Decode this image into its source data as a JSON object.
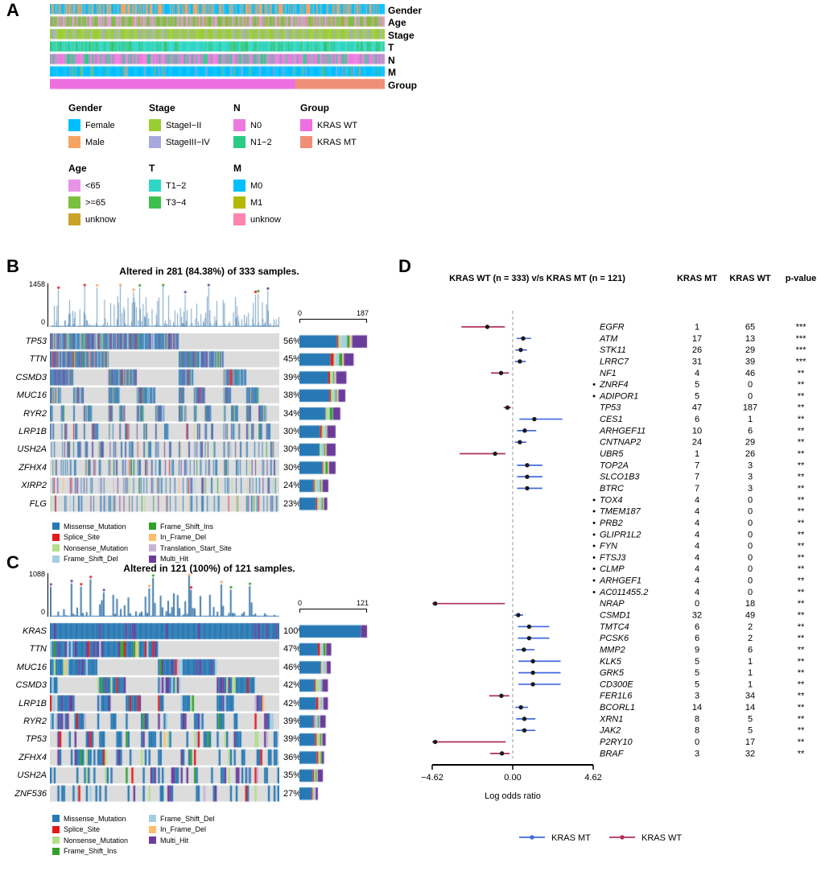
{
  "mutation_colors": {
    "Missense_Mutation": "#2779B5",
    "Splice_Site": "#E31A1C",
    "Nonsense_Mutation": "#B2DF8A",
    "Frame_Shift_Del": "#A6CEE3",
    "Frame_Shift_Ins": "#33A02C",
    "In_Frame_Del": "#FDBF6F",
    "Translation_Start_Site": "#CAB2D6",
    "Multi_Hit": "#6A3D9A"
  },
  "colors": {
    "onco_bg": "#DCDCDC",
    "tmb_bar": "#3A76A9",
    "tmb_dots": [
      "#F4A460",
      "#33A02C",
      "#E31A1C",
      "#6A3D9A"
    ]
  },
  "chart_data": [
    {
      "id": "A",
      "type": "heatmap",
      "panel_label": "A",
      "tracks": [
        {
          "name": "Gender",
          "layout": "random",
          "categories": [
            {
              "label": "Female",
              "color": "#00BFFF",
              "p": 0.55
            },
            {
              "label": "Male",
              "color": "#F4A460",
              "p": 0.45
            }
          ]
        },
        {
          "name": "Age",
          "layout": "random",
          "categories": [
            {
              "label": "<65",
              "color": "#E793E7",
              "p": 0.37
            },
            {
              "label": ">=65",
              "color": "#7CBF3F",
              "p": 0.6
            },
            {
              "label": "unknow",
              "color": "#C9A227",
              "p": 0.03
            }
          ]
        },
        {
          "name": "Stage",
          "layout": "random",
          "categories": [
            {
              "label": "StageI−II",
              "color": "#9ACD32",
              "p": 0.77
            },
            {
              "label": "StageIII−IV",
              "color": "#A8A8DE",
              "p": 0.23
            }
          ]
        },
        {
          "name": "T",
          "layout": "random",
          "categories": [
            {
              "label": "T1−2",
              "color": "#2FD6C6",
              "p": 0.8
            },
            {
              "label": "T3−4",
              "color": "#3FBF4D",
              "p": 0.2
            }
          ]
        },
        {
          "name": "N",
          "layout": "random",
          "categories": [
            {
              "label": "N0",
              "color": "#EE7AE0",
              "p": 0.64
            },
            {
              "label": "N1−2",
              "color": "#2BCB87",
              "p": 0.36
            }
          ]
        },
        {
          "name": "M",
          "layout": "random",
          "categories": [
            {
              "label": "M0",
              "color": "#00BFFF",
              "p": 0.92
            },
            {
              "label": "M1",
              "color": "#B5B800",
              "p": 0.04
            },
            {
              "label": "unknow",
              "color": "#FF85AC",
              "p": 0.04
            }
          ]
        },
        {
          "name": "Group",
          "layout": "block",
          "categories": [
            {
              "label": "KRAS WT",
              "color": "#EE6FE1",
              "p": 0.733
            },
            {
              "label": "KRAS MT",
              "color": "#F08F77",
              "p": 0.267
            }
          ]
        }
      ],
      "legends": [
        {
          "title": "Gender",
          "items": [
            {
              "label": "Female",
              "color": "#00BFFF"
            },
            {
              "label": "Male",
              "color": "#F4A460"
            }
          ]
        },
        {
          "title": "Stage",
          "items": [
            {
              "label": "StageI−II",
              "color": "#9ACD32"
            },
            {
              "label": "StageIII−IV",
              "color": "#A8A8DE"
            }
          ]
        },
        {
          "title": "N",
          "items": [
            {
              "label": "N0",
              "color": "#EE7AE0"
            },
            {
              "label": "N1−2",
              "color": "#2BCB87"
            }
          ]
        },
        {
          "title": "Group",
          "items": [
            {
              "label": "KRAS WT",
              "color": "#EE6FE1"
            },
            {
              "label": "KRAS MT",
              "color": "#F08F77"
            }
          ]
        },
        {
          "title": "Age",
          "items": [
            {
              "label": "<65",
              "color": "#E793E7"
            },
            {
              "label": ">=65",
              "color": "#7CBF3F"
            },
            {
              "label": "unknow",
              "color": "#C9A227"
            }
          ]
        },
        {
          "title": "T",
          "items": [
            {
              "label": "T1−2",
              "color": "#2FD6C6"
            },
            {
              "label": "T3−4",
              "color": "#3FBF4D"
            }
          ]
        },
        {
          "title": "M",
          "items": [
            {
              "label": "M0",
              "color": "#00BFFF"
            },
            {
              "label": "M1",
              "color": "#B5B800"
            },
            {
              "label": "unknow",
              "color": "#FF85AC"
            }
          ]
        }
      ]
    },
    {
      "id": "B",
      "type": "bar",
      "subtype": "oncoprint",
      "panel_label": "B",
      "title": "Altered in 281 (84.38%) of 333 samples.",
      "n_samples": 333,
      "n_altered": 281,
      "tmb_axis": {
        "max_label": "1458",
        "min_label": "0"
      },
      "bar_axis": {
        "max": 187,
        "max_label": "187",
        "min_label": "0"
      },
      "genes": [
        {
          "gene": "TP53",
          "pct": 56,
          "pct_label": "56%",
          "count": 187
        },
        {
          "gene": "TTN",
          "pct": 45,
          "pct_label": "45%",
          "count": 150
        },
        {
          "gene": "CSMD3",
          "pct": 39,
          "pct_label": "39%",
          "count": 130
        },
        {
          "gene": "MUC16",
          "pct": 38,
          "pct_label": "38%",
          "count": 127
        },
        {
          "gene": "RYR2",
          "pct": 34,
          "pct_label": "34%",
          "count": 113
        },
        {
          "gene": "LRP1B",
          "pct": 30,
          "pct_label": "30%",
          "count": 100
        },
        {
          "gene": "USH2A",
          "pct": 30,
          "pct_label": "30%",
          "count": 100
        },
        {
          "gene": "ZFHX4",
          "pct": 30,
          "pct_label": "30%",
          "count": 100
        },
        {
          "gene": "XIRP2",
          "pct": 24,
          "pct_label": "24%",
          "count": 80
        },
        {
          "gene": "FLG",
          "pct": 23,
          "pct_label": "23%",
          "count": 77
        }
      ],
      "legend_columns": [
        [
          "Missense_Mutation",
          "Splice_Site",
          "Nonsense_Mutation",
          "Frame_Shift_Del"
        ],
        [
          "Frame_Shift_Ins",
          "In_Frame_Del",
          "Translation_Start_Site",
          "Multi_Hit"
        ]
      ]
    },
    {
      "id": "C",
      "type": "bar",
      "subtype": "oncoprint",
      "panel_label": "C",
      "title": "Altered in 121 (100%) of 121 samples.",
      "n_samples": 121,
      "n_altered": 121,
      "tmb_axis": {
        "max_label": "1088",
        "min_label": "0"
      },
      "bar_axis": {
        "max": 121,
        "max_label": "121",
        "min_label": "0"
      },
      "genes": [
        {
          "gene": "KRAS",
          "pct": 100,
          "pct_label": "100%",
          "count": 121
        },
        {
          "gene": "TTN",
          "pct": 47,
          "pct_label": "47%",
          "count": 57
        },
        {
          "gene": "MUC16",
          "pct": 46,
          "pct_label": "46%",
          "count": 56
        },
        {
          "gene": "CSMD3",
          "pct": 42,
          "pct_label": "42%",
          "count": 51
        },
        {
          "gene": "LRP1B",
          "pct": 42,
          "pct_label": "42%",
          "count": 51
        },
        {
          "gene": "RYR2",
          "pct": 39,
          "pct_label": "39%",
          "count": 47
        },
        {
          "gene": "TP53",
          "pct": 39,
          "pct_label": "39%",
          "count": 47
        },
        {
          "gene": "ZFHX4",
          "pct": 36,
          "pct_label": "36%",
          "count": 44
        },
        {
          "gene": "USH2A",
          "pct": 35,
          "pct_label": "35%",
          "count": 42
        },
        {
          "gene": "ZNF536",
          "pct": 27,
          "pct_label": "27%",
          "count": 33
        }
      ],
      "legend_columns": [
        [
          "Missense_Mutation",
          "Splice_Site",
          "Nonsense_Mutation",
          "Frame_Shift_Ins"
        ],
        [
          "Frame_Shift_Del",
          "In_Frame_Del",
          "Multi_Hit"
        ]
      ]
    },
    {
      "id": "D",
      "type": "scatter",
      "subtype": "forest",
      "panel_label": "D",
      "title": "KRAS WT (n = 333) v/s KRAS MT (n = 121)",
      "columns": [
        "KRAS MT",
        "KRAS WT",
        "p-value"
      ],
      "axis": {
        "min": -4.62,
        "max": 4.62,
        "tick_values": [
          -4.62,
          0,
          4.62
        ],
        "ticks": [
          "−4.62",
          "0.00",
          "4.62"
        ],
        "label": "Log odds ratio"
      },
      "colors": {
        "mt": "#4169E1",
        "wt": "#B03060"
      },
      "legend": [
        {
          "label": "KRAS MT",
          "color": "#4169E1"
        },
        {
          "label": "KRAS WT",
          "color": "#B03060"
        }
      ],
      "rows": [
        {
          "gene": "EGFR",
          "mt": 1,
          "wt": 65,
          "p": "***",
          "bullet": false,
          "group": "wt",
          "lor": -1.46,
          "ci": [
            -2.95,
            -0.45
          ]
        },
        {
          "gene": "ATM",
          "mt": 17,
          "wt": 13,
          "p": "***",
          "bullet": false,
          "group": "mt",
          "lor": 0.6,
          "ci": [
            0.22,
            1.05
          ]
        },
        {
          "gene": "STK11",
          "mt": 26,
          "wt": 29,
          "p": "***",
          "bullet": false,
          "group": "mt",
          "lor": 0.46,
          "ci": [
            0.15,
            0.82
          ]
        },
        {
          "gene": "LRRC7",
          "mt": 31,
          "wt": 39,
          "p": "***",
          "bullet": false,
          "group": "mt",
          "lor": 0.41,
          "ci": [
            0.12,
            0.75
          ]
        },
        {
          "gene": "NF1",
          "mt": 4,
          "wt": 46,
          "p": "**",
          "bullet": false,
          "group": "wt",
          "lor": -0.67,
          "ci": [
            -1.25,
            -0.22
          ]
        },
        {
          "gene": "ZNRF4",
          "mt": 5,
          "wt": 0,
          "p": "**",
          "bullet": true,
          "group": null,
          "lor": null,
          "ci": null
        },
        {
          "gene": "ADIPOR1",
          "mt": 5,
          "wt": 0,
          "p": "**",
          "bullet": true,
          "group": null,
          "lor": null,
          "ci": null
        },
        {
          "gene": "TP53",
          "mt": 47,
          "wt": 187,
          "p": "**",
          "bullet": false,
          "group": "wt",
          "lor": -0.3,
          "ci": [
            -0.52,
            -0.1
          ]
        },
        {
          "gene": "CES1",
          "mt": 6,
          "wt": 1,
          "p": "**",
          "bullet": false,
          "group": "mt",
          "lor": 1.24,
          "ci": [
            0.38,
            2.85
          ]
        },
        {
          "gene": "ARHGEF11",
          "mt": 10,
          "wt": 6,
          "p": "**",
          "bullet": false,
          "group": "mt",
          "lor": 0.69,
          "ci": [
            0.25,
            1.35
          ]
        },
        {
          "gene": "CNTNAP2",
          "mt": 24,
          "wt": 29,
          "p": "**",
          "bullet": false,
          "group": "mt",
          "lor": 0.41,
          "ci": [
            0.12,
            0.78
          ]
        },
        {
          "gene": "UBR5",
          "mt": 1,
          "wt": 26,
          "p": "**",
          "bullet": false,
          "group": "wt",
          "lor": -1.01,
          "ci": [
            -3.05,
            -0.42
          ]
        },
        {
          "gene": "TOP2A",
          "mt": 7,
          "wt": 3,
          "p": "**",
          "bullet": false,
          "group": "mt",
          "lor": 0.83,
          "ci": [
            0.25,
            1.7
          ]
        },
        {
          "gene": "SLCO1B3",
          "mt": 7,
          "wt": 3,
          "p": "**",
          "bullet": false,
          "group": "mt",
          "lor": 0.83,
          "ci": [
            0.25,
            1.7
          ]
        },
        {
          "gene": "BTRC",
          "mt": 7,
          "wt": 3,
          "p": "**",
          "bullet": false,
          "group": "mt",
          "lor": 0.83,
          "ci": [
            0.25,
            1.7
          ]
        },
        {
          "gene": "TOX4",
          "mt": 4,
          "wt": 0,
          "p": "**",
          "bullet": true,
          "group": null,
          "lor": null,
          "ci": null
        },
        {
          "gene": "TMEM187",
          "mt": 4,
          "wt": 0,
          "p": "**",
          "bullet": true,
          "group": null,
          "lor": null,
          "ci": null
        },
        {
          "gene": "PRB2",
          "mt": 4,
          "wt": 0,
          "p": "**",
          "bullet": true,
          "group": null,
          "lor": null,
          "ci": null
        },
        {
          "gene": "GLIPR1L2",
          "mt": 4,
          "wt": 0,
          "p": "**",
          "bullet": true,
          "group": null,
          "lor": null,
          "ci": null
        },
        {
          "gene": "FYN",
          "mt": 4,
          "wt": 0,
          "p": "**",
          "bullet": true,
          "group": null,
          "lor": null,
          "ci": null
        },
        {
          "gene": "FTSJ3",
          "mt": 4,
          "wt": 0,
          "p": "**",
          "bullet": true,
          "group": null,
          "lor": null,
          "ci": null
        },
        {
          "gene": "CLMP",
          "mt": 4,
          "wt": 0,
          "p": "**",
          "bullet": true,
          "group": null,
          "lor": null,
          "ci": null
        },
        {
          "gene": "ARHGEF1",
          "mt": 4,
          "wt": 0,
          "p": "**",
          "bullet": true,
          "group": null,
          "lor": null,
          "ci": null
        },
        {
          "gene": "AC011455.2",
          "mt": 4,
          "wt": 0,
          "p": "**",
          "bullet": true,
          "group": null,
          "lor": null,
          "ci": null
        },
        {
          "gene": "NRAP",
          "mt": 0,
          "wt": 18,
          "p": "**",
          "bullet": false,
          "group": "wt",
          "lor": -4.45,
          "ci": [
            -4.62,
            -0.45
          ]
        },
        {
          "gene": "CSMD1",
          "mt": 32,
          "wt": 49,
          "p": "**",
          "bullet": false,
          "group": "mt",
          "lor": 0.32,
          "ci": [
            0.08,
            0.6
          ]
        },
        {
          "gene": "TMTC4",
          "mt": 6,
          "wt": 2,
          "p": "**",
          "bullet": false,
          "group": "mt",
          "lor": 0.94,
          "ci": [
            0.3,
            2.1
          ]
        },
        {
          "gene": "PCSK6",
          "mt": 6,
          "wt": 2,
          "p": "**",
          "bullet": false,
          "group": "mt",
          "lor": 0.94,
          "ci": [
            0.3,
            2.1
          ]
        },
        {
          "gene": "MMP2",
          "mt": 9,
          "wt": 6,
          "p": "**",
          "bullet": false,
          "group": "mt",
          "lor": 0.64,
          "ci": [
            0.2,
            1.25
          ]
        },
        {
          "gene": "KLK5",
          "mt": 5,
          "wt": 1,
          "p": "**",
          "bullet": false,
          "group": "mt",
          "lor": 1.16,
          "ci": [
            0.33,
            2.75
          ]
        },
        {
          "gene": "GRK5",
          "mt": 5,
          "wt": 1,
          "p": "**",
          "bullet": false,
          "group": "mt",
          "lor": 1.16,
          "ci": [
            0.33,
            2.75
          ]
        },
        {
          "gene": "CD300E",
          "mt": 5,
          "wt": 1,
          "p": "**",
          "bullet": false,
          "group": "mt",
          "lor": 1.16,
          "ci": [
            0.33,
            2.75
          ]
        },
        {
          "gene": "FER1L6",
          "mt": 3,
          "wt": 34,
          "p": "**",
          "bullet": false,
          "group": "wt",
          "lor": -0.65,
          "ci": [
            -1.35,
            -0.2
          ]
        },
        {
          "gene": "BCORL1",
          "mt": 14,
          "wt": 14,
          "p": "**",
          "bullet": false,
          "group": "mt",
          "lor": 0.47,
          "ci": [
            0.15,
            0.88
          ]
        },
        {
          "gene": "XRN1",
          "mt": 8,
          "wt": 5,
          "p": "**",
          "bullet": false,
          "group": "mt",
          "lor": 0.67,
          "ci": [
            0.2,
            1.3
          ]
        },
        {
          "gene": "JAK2",
          "mt": 8,
          "wt": 5,
          "p": "**",
          "bullet": false,
          "group": "mt",
          "lor": 0.67,
          "ci": [
            0.2,
            1.3
          ]
        },
        {
          "gene": "P2RY10",
          "mt": 0,
          "wt": 17,
          "p": "**",
          "bullet": false,
          "group": "wt",
          "lor": -4.45,
          "ci": [
            -4.62,
            -0.4
          ]
        },
        {
          "gene": "BRAF",
          "mt": 3,
          "wt": 32,
          "p": "**",
          "bullet": false,
          "group": "wt",
          "lor": -0.62,
          "ci": [
            -1.3,
            -0.18
          ]
        }
      ]
    }
  ]
}
